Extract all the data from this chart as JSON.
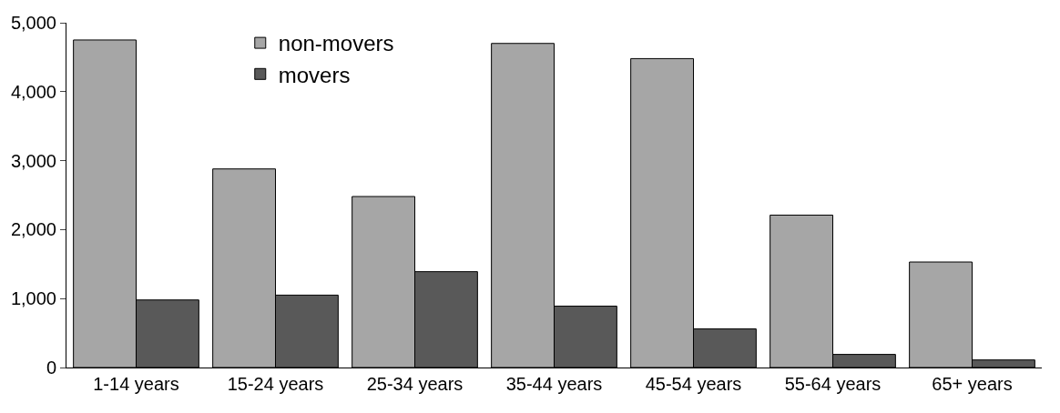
{
  "chart_data": {
    "type": "bar",
    "categories": [
      "1-14 years",
      "15-24 years",
      "25-34 years",
      "35-44 years",
      "45-54 years",
      "55-64 years",
      "65+ years"
    ],
    "series": [
      {
        "name": "non-movers",
        "color": "#a6a6a6",
        "values": [
          4750,
          2880,
          2480,
          4700,
          4480,
          2210,
          1530
        ]
      },
      {
        "name": "movers",
        "color": "#595959",
        "values": [
          980,
          1050,
          1390,
          890,
          560,
          190,
          110
        ]
      }
    ],
    "ylim": [
      0,
      5000
    ],
    "yticks": [
      {
        "value": 0,
        "label": "0"
      },
      {
        "value": 1000,
        "label": "1,000"
      },
      {
        "value": 2000,
        "label": "2,000"
      },
      {
        "value": 3000,
        "label": "3,000"
      },
      {
        "value": 4000,
        "label": "4,000"
      },
      {
        "value": 5000,
        "label": "5,000"
      }
    ],
    "legend": "top left"
  }
}
